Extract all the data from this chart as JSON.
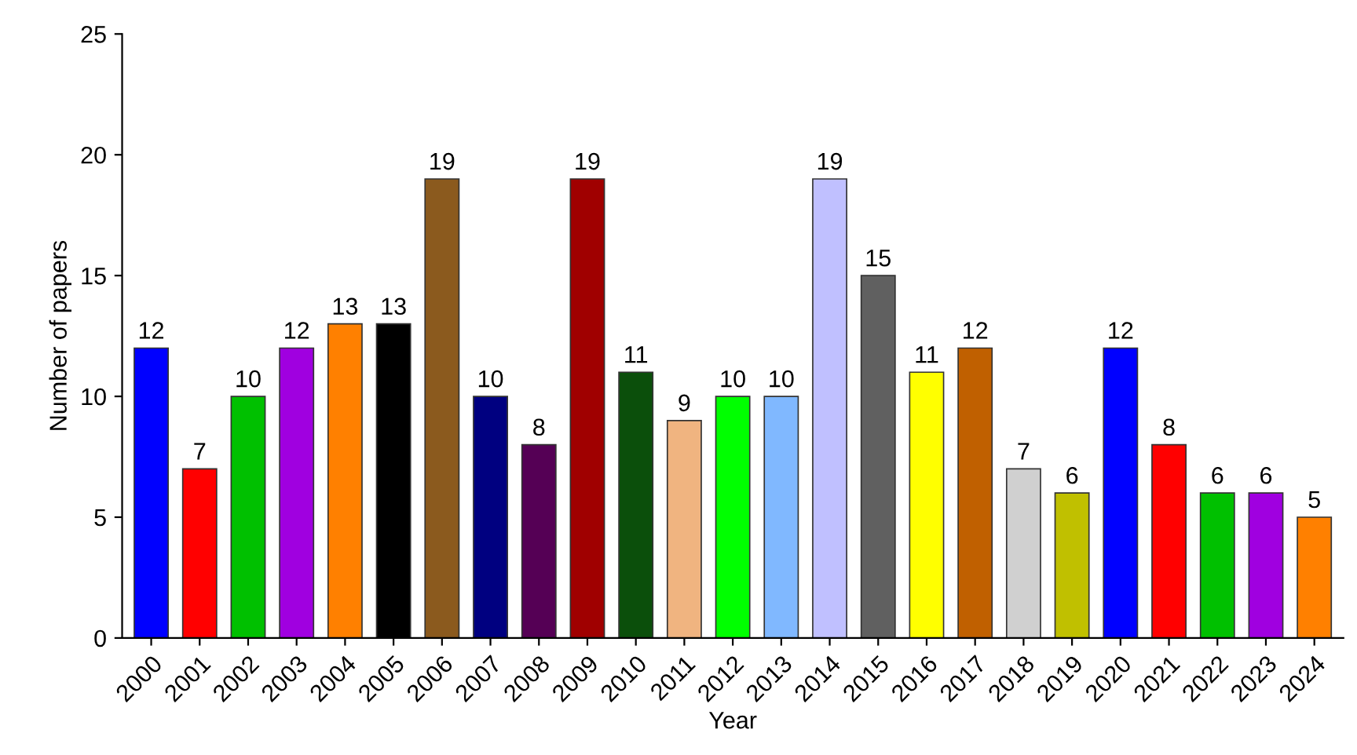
{
  "chart_data": {
    "type": "bar",
    "xlabel": "Year",
    "ylabel": "Number of papers",
    "categories": [
      "2000",
      "2001",
      "2002",
      "2003",
      "2004",
      "2005",
      "2006",
      "2007",
      "2008",
      "2009",
      "2010",
      "2011",
      "2012",
      "2013",
      "2014",
      "2015",
      "2016",
      "2017",
      "2018",
      "2019",
      "2020",
      "2021",
      "2022",
      "2023",
      "2024"
    ],
    "values": [
      12,
      7,
      10,
      12,
      13,
      13,
      19,
      10,
      8,
      19,
      11,
      9,
      10,
      10,
      19,
      15,
      11,
      12,
      7,
      6,
      12,
      8,
      6,
      6,
      5
    ],
    "colors": [
      "#0000ff",
      "#ff0000",
      "#00c000",
      "#a000e0",
      "#ff8000",
      "#000000",
      "#8b5a1e",
      "#000080",
      "#550055",
      "#a00000",
      "#0b4f0b",
      "#f0b480",
      "#00ff00",
      "#80b8ff",
      "#c0c0ff",
      "#606060",
      "#ffff00",
      "#c06000",
      "#d0d0d0",
      "#c0c000",
      "#0000ff",
      "#ff0000",
      "#00c000",
      "#a000e0",
      "#ff8000"
    ],
    "ylim": [
      0,
      25
    ],
    "yticks": [
      0,
      5,
      10,
      15,
      20,
      25
    ],
    "data_labels": true,
    "grid": false,
    "legend": false
  }
}
